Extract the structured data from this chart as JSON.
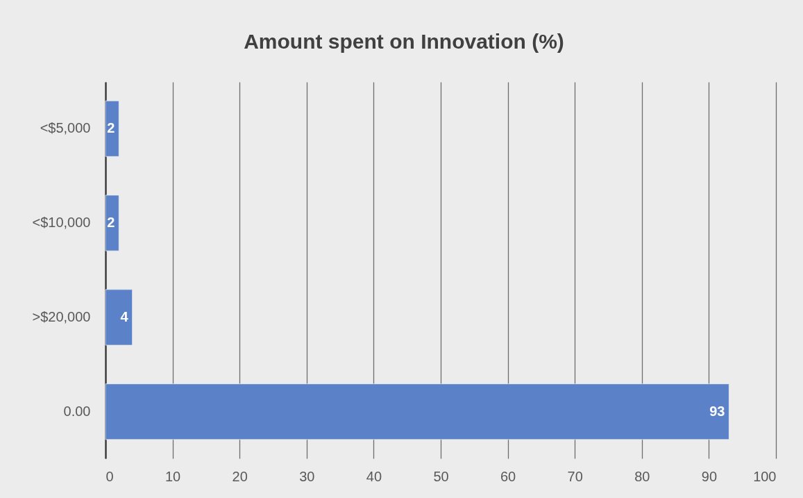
{
  "chart_data": {
    "type": "bar",
    "orientation": "horizontal",
    "title": "Amount spent on Innovation (%)",
    "categories": [
      "<$5,000",
      "<$10,000",
      ">$20,000",
      "0.00"
    ],
    "values": [
      2,
      2,
      4,
      93
    ],
    "color": "#5b82c9",
    "xlim": [
      0,
      100
    ],
    "xticks": [
      0,
      10,
      20,
      30,
      40,
      50,
      60,
      70,
      80,
      90,
      100
    ],
    "grid": "x",
    "data_labels": true
  }
}
